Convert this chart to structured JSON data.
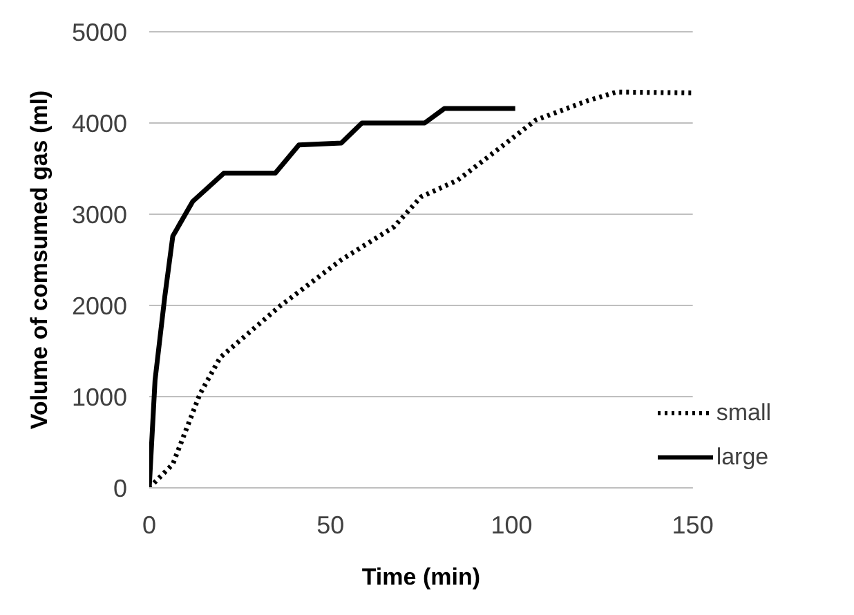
{
  "chart_data": {
    "type": "line",
    "xlabel": "Time (min)",
    "ylabel": "Volume of comsumed  gas (ml)",
    "xlim": [
      0,
      150
    ],
    "xticks": [
      0,
      50,
      100,
      150
    ],
    "ylim": [
      0,
      5000
    ],
    "yticks": [
      0,
      1000,
      2000,
      3000,
      4000,
      5000
    ],
    "grid": "y",
    "legend": "bottom right",
    "marker": "none",
    "series": [
      {
        "name": "small",
        "color": "#000000",
        "line_style": "dotted",
        "x": [
          0,
          6.5,
          14,
          19.6,
          36,
          53,
          67.5,
          75,
          85,
          93.6,
          106.6,
          120.6,
          129,
          150
        ],
        "values": [
          0,
          260,
          1030,
          1430,
          1990,
          2500,
          2860,
          3190,
          3370,
          3630,
          4030,
          4240,
          4340,
          4330
        ]
      },
      {
        "name": "large",
        "color": "#000000",
        "line_style": "solid",
        "x": [
          0,
          1.6,
          4.3,
          6.5,
          12,
          20.6,
          34.8,
          41.3,
          53,
          58.7,
          76,
          81.5,
          101
        ],
        "values": [
          0,
          1180,
          2100,
          2760,
          3140,
          3450,
          3450,
          3760,
          3780,
          4000,
          4000,
          4160,
          4160
        ]
      }
    ]
  }
}
